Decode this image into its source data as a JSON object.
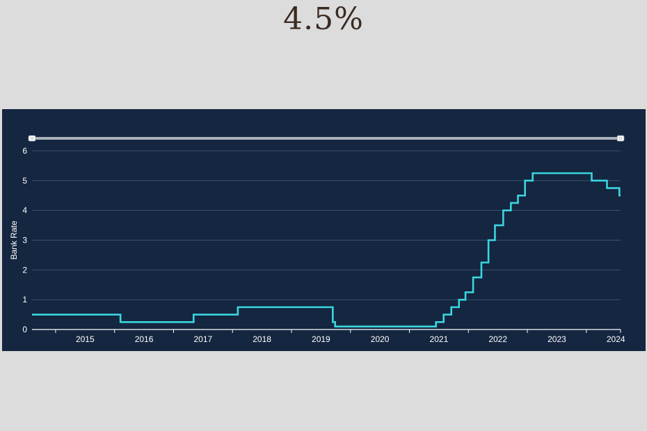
{
  "headline": "4.5%",
  "colors": {
    "background": "#dcdcdc",
    "panel": "#142640",
    "line": "#3ad6e0",
    "grid": "#3d5270",
    "text": "#ffffff",
    "slider_track": "#a9b1bb",
    "headline": "#3a2a22"
  },
  "chart_data": {
    "type": "line",
    "step": true,
    "ylabel": "Bank Rate",
    "xlabel": "",
    "title": "",
    "xlim": [
      2014.6,
      2024.58
    ],
    "ylim": [
      0,
      6
    ],
    "yticks": [
      0,
      1,
      2,
      3,
      4,
      5,
      6
    ],
    "xticks": [
      2015,
      2016,
      2017,
      2018,
      2019,
      2020,
      2021,
      2022,
      2023,
      2024
    ],
    "grid": "horizontal",
    "range_slider": {
      "from": 2014.6,
      "to": 2024.58
    },
    "series": [
      {
        "points": [
          [
            2014.6,
            0.5
          ],
          [
            2016.1,
            0.25
          ],
          [
            2017.34,
            0.5
          ],
          [
            2018.09,
            0.75
          ],
          [
            2019.7,
            0.25
          ],
          [
            2019.74,
            0.1
          ],
          [
            2021.45,
            0.25
          ],
          [
            2021.58,
            0.5
          ],
          [
            2021.71,
            0.75
          ],
          [
            2021.84,
            1.0
          ],
          [
            2021.95,
            1.25
          ],
          [
            2022.08,
            1.75
          ],
          [
            2022.22,
            2.25
          ],
          [
            2022.34,
            3.0
          ],
          [
            2022.45,
            3.5
          ],
          [
            2022.59,
            4.0
          ],
          [
            2022.72,
            4.25
          ],
          [
            2022.84,
            4.5
          ],
          [
            2022.96,
            5.0
          ],
          [
            2023.09,
            5.25
          ],
          [
            2024.09,
            5.0
          ],
          [
            2024.35,
            4.75
          ],
          [
            2024.56,
            4.5
          ],
          [
            2024.58,
            4.5
          ]
        ]
      }
    ]
  }
}
